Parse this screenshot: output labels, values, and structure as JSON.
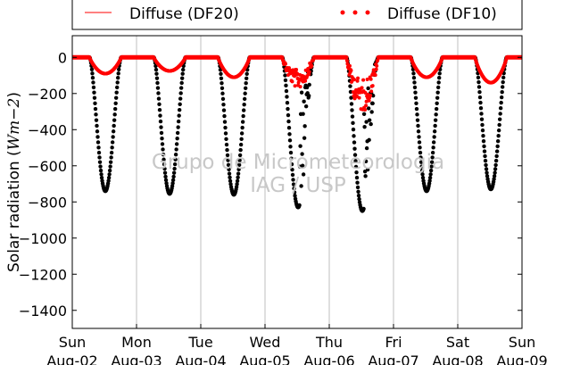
{
  "chart_data": {
    "type": "line",
    "xlabel": "",
    "ylabel": "Solar radiation (",
    "ylabel_math": "Wm−2",
    "ylabel_close": ")",
    "ylim": [
      -1500,
      120
    ],
    "xlim": [
      0,
      7
    ],
    "yticks": [
      0,
      -200,
      -400,
      -600,
      -800,
      -1000,
      -1200,
      -1400
    ],
    "xticks": [
      {
        "day": "Sun",
        "date": "Aug-02",
        "x": 0
      },
      {
        "day": "Mon",
        "date": "Aug-03",
        "x": 1
      },
      {
        "day": "Tue",
        "date": "Aug-04",
        "x": 2
      },
      {
        "day": "Wed",
        "date": "Aug-05",
        "x": 3
      },
      {
        "day": "Thu",
        "date": "Aug-06",
        "x": 4
      },
      {
        "day": "Fri",
        "date": "Aug-07",
        "x": 5
      },
      {
        "day": "Sat",
        "date": "Aug-08",
        "x": 6
      },
      {
        "day": "Sun",
        "date": "Aug-09",
        "x": 7
      }
    ],
    "vertical_grid": true,
    "legend_position": "top",
    "series": [
      {
        "name": "Diffuse (DF20)",
        "style": "line",
        "color": "#ff0000"
      },
      {
        "name": "Diffuse (DF10)",
        "style": "dots",
        "color": "#ff0000"
      },
      {
        "style": "dots",
        "color": "#000000"
      }
    ],
    "daily_peaks": [
      {
        "day_index": 0,
        "global_min": -740,
        "diffuse_min": -90
      },
      {
        "day_index": 1,
        "global_min": -755,
        "diffuse_min": -75
      },
      {
        "day_index": 2,
        "global_min": -760,
        "diffuse_min": -110
      },
      {
        "day_index": 3,
        "global_min": -830,
        "diffuse_min": -170
      },
      {
        "day_index": 4,
        "global_min": -850,
        "diffuse_min": -300
      },
      {
        "day_index": 5,
        "global_min": -740,
        "diffuse_min": -110
      },
      {
        "day_index": 6,
        "global_min": -730,
        "diffuse_min": -140
      }
    ],
    "watermark": [
      "Grupo de Micrometeorologia",
      "IAG / USP"
    ]
  },
  "colors": {
    "diffuse": "#ff0000",
    "global": "#000000",
    "grid": "#bfbfbf",
    "watermark": "#c8c8c8"
  }
}
